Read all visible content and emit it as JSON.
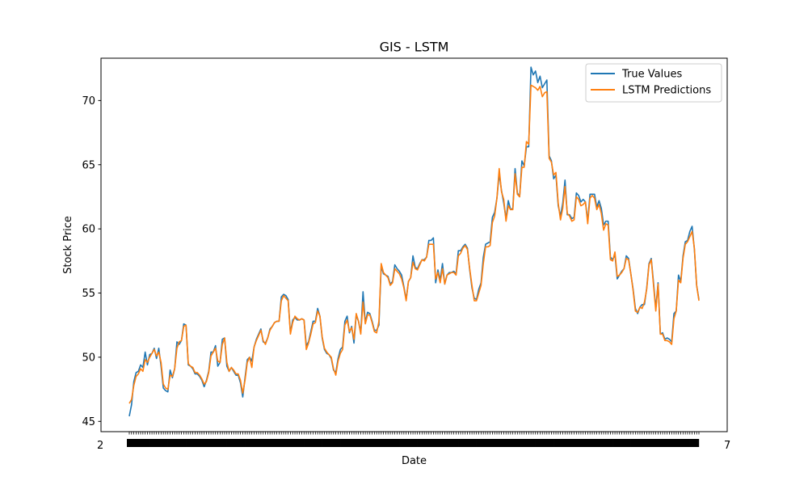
{
  "chart_data": {
    "type": "line",
    "title": "GIS - LSTM",
    "xlabel": "Date",
    "ylabel": "Stock Price",
    "ylim": [
      44.2,
      73.3
    ],
    "yticks": [
      45,
      50,
      55,
      60,
      65,
      70
    ],
    "x_tick_labels_first": "2",
    "x_tick_labels_last": "7",
    "legend_position": "top-right",
    "grid": false,
    "colors": {
      "true": "#1f77b4",
      "pred": "#ff7f0e"
    },
    "series": [
      {
        "name": "True Values",
        "values": [
          45.4,
          46.3,
          48.1,
          48.8,
          48.9,
          49.4,
          49.2,
          50.4,
          49.4,
          50.2,
          50.3,
          50.7,
          49.9,
          50.7,
          49.3,
          47.6,
          47.4,
          47.3,
          49.0,
          48.4,
          49.1,
          51.2,
          51.0,
          51.3,
          52.6,
          52.5,
          49.4,
          49.3,
          49.1,
          48.7,
          48.7,
          48.5,
          48.2,
          47.7,
          48.2,
          48.9,
          50.4,
          50.4,
          50.9,
          49.3,
          49.6,
          51.4,
          51.5,
          49.3,
          48.9,
          49.2,
          48.9,
          48.6,
          48.6,
          48.0,
          46.9,
          48.4,
          49.8,
          50.0,
          49.7,
          50.8,
          51.4,
          51.8,
          52.2,
          51.2,
          51.1,
          51.5,
          52.2,
          52.4,
          52.7,
          52.8,
          52.8,
          54.7,
          54.9,
          54.8,
          54.5,
          51.9,
          52.9,
          53.1,
          52.9,
          52.9,
          53.0,
          52.9,
          50.9,
          51.2,
          52.0,
          52.8,
          52.8,
          53.8,
          53.2,
          51.5,
          50.6,
          50.3,
          50.2,
          49.9,
          49.0,
          48.8,
          49.9,
          50.6,
          50.8,
          52.8,
          53.2,
          51.9,
          52.4,
          51.1,
          53.3,
          52.8,
          51.9,
          55.1,
          52.7,
          53.5,
          53.4,
          52.8,
          52.1,
          52.1,
          52.5,
          57.1,
          56.5,
          56.4,
          56.3,
          55.7,
          55.9,
          57.2,
          56.9,
          56.7,
          56.4,
          55.5,
          54.5,
          55.9,
          56.2,
          57.9,
          57.0,
          56.9,
          57.3,
          57.6,
          57.6,
          57.8,
          59.1,
          59.1,
          59.3,
          55.8,
          56.8,
          56.0,
          57.3,
          55.7,
          56.4,
          56.6,
          56.6,
          56.7,
          56.5,
          58.3,
          58.3,
          58.6,
          58.8,
          58.5,
          56.8,
          55.4,
          54.6,
          54.5,
          55.3,
          55.8,
          57.8,
          58.8,
          58.9,
          59.0,
          60.9,
          61.3,
          62.4,
          64.3,
          63.0,
          62.0,
          60.8,
          62.2,
          61.5,
          61.6,
          64.7,
          62.8,
          62.5,
          65.3,
          64.9,
          66.4,
          66.4,
          72.6,
          72.0,
          72.3,
          71.4,
          71.9,
          71.0,
          71.3,
          71.6,
          65.7,
          65.3,
          63.9,
          64.2,
          61.8,
          61.0,
          62.0,
          63.8,
          61.1,
          61.1,
          60.8,
          60.9,
          62.8,
          62.6,
          62.1,
          62.3,
          62.1,
          60.6,
          62.7,
          62.7,
          62.7,
          61.7,
          62.2,
          61.6,
          60.3,
          60.6,
          60.6,
          57.8,
          57.6,
          58.0,
          56.1,
          56.4,
          56.7,
          56.9,
          57.9,
          57.7,
          56.5,
          55.3,
          53.8,
          53.4,
          53.9,
          54.1,
          54.1,
          55.4,
          57.3,
          57.7,
          55.8,
          53.8,
          55.8,
          51.8,
          51.9,
          51.4,
          51.5,
          51.4,
          51.2,
          53.4,
          53.6,
          56.4,
          55.9,
          57.9,
          59.0,
          59.1,
          59.8,
          60.2,
          58.4,
          55.6,
          54.5
        ]
      },
      {
        "name": "LSTM Predictions",
        "values": [
          46.4,
          46.7,
          47.8,
          48.5,
          48.7,
          49.1,
          48.9,
          49.8,
          49.6,
          50.0,
          50.3,
          50.6,
          50.1,
          50.4,
          49.6,
          47.9,
          47.6,
          47.5,
          48.6,
          48.5,
          49.1,
          50.7,
          51.2,
          51.3,
          52.4,
          52.5,
          49.5,
          49.3,
          49.2,
          48.8,
          48.8,
          48.6,
          48.3,
          47.9,
          48.1,
          48.8,
          50.1,
          50.4,
          50.7,
          49.7,
          49.6,
          51.0,
          51.5,
          49.6,
          48.9,
          49.2,
          49.0,
          48.7,
          48.7,
          48.2,
          47.2,
          48.2,
          49.6,
          50.0,
          49.2,
          50.8,
          51.3,
          51.7,
          52.1,
          51.3,
          51.0,
          51.5,
          52.1,
          52.4,
          52.7,
          52.8,
          52.8,
          54.4,
          54.8,
          54.6,
          54.4,
          51.8,
          52.7,
          53.2,
          53.0,
          52.9,
          53.0,
          52.9,
          50.6,
          51.1,
          51.8,
          52.6,
          52.7,
          53.6,
          53.2,
          51.6,
          50.7,
          50.4,
          50.2,
          50.0,
          49.1,
          48.6,
          49.7,
          50.3,
          50.6,
          52.5,
          52.9,
          52.0,
          52.3,
          51.4,
          53.4,
          52.8,
          51.8,
          54.3,
          52.6,
          53.3,
          53.3,
          52.7,
          52.0,
          51.9,
          52.8,
          57.3,
          56.6,
          56.4,
          56.2,
          55.6,
          55.8,
          56.9,
          56.7,
          56.5,
          56.1,
          55.4,
          54.4,
          55.9,
          56.2,
          57.4,
          56.9,
          56.8,
          57.2,
          57.6,
          57.5,
          57.8,
          58.8,
          58.8,
          58.8,
          56.1,
          56.6,
          55.8,
          56.9,
          55.7,
          56.4,
          56.5,
          56.6,
          56.6,
          56.4,
          57.9,
          58.1,
          58.5,
          58.7,
          58.4,
          56.9,
          55.6,
          54.4,
          54.4,
          55.0,
          55.6,
          57.3,
          58.6,
          58.6,
          58.7,
          60.5,
          61.0,
          62.4,
          64.7,
          62.9,
          62.3,
          60.6,
          61.8,
          61.5,
          61.5,
          64.3,
          62.7,
          62.5,
          64.8,
          64.8,
          66.8,
          66.6,
          71.2,
          71.1,
          71.0,
          70.8,
          71.1,
          70.3,
          70.6,
          70.7,
          65.5,
          65.2,
          64.2,
          64.4,
          62.0,
          60.7,
          61.6,
          63.3,
          61.2,
          61.0,
          60.6,
          60.7,
          62.5,
          62.3,
          61.8,
          61.9,
          62.1,
          60.4,
          62.4,
          62.6,
          62.4,
          61.5,
          61.9,
          61.2,
          59.9,
          60.4,
          60.3,
          57.6,
          57.5,
          58.2,
          56.3,
          56.4,
          56.6,
          56.9,
          57.7,
          57.6,
          56.5,
          55.2,
          53.6,
          53.5,
          53.9,
          53.8,
          54.3,
          55.3,
          57.2,
          57.6,
          55.6,
          53.6,
          55.7,
          51.8,
          51.8,
          51.3,
          51.3,
          51.2,
          51.0,
          53.0,
          53.6,
          56.0,
          55.8,
          57.7,
          58.8,
          59.0,
          59.4,
          59.8,
          58.5,
          55.6,
          54.4
        ]
      }
    ]
  }
}
